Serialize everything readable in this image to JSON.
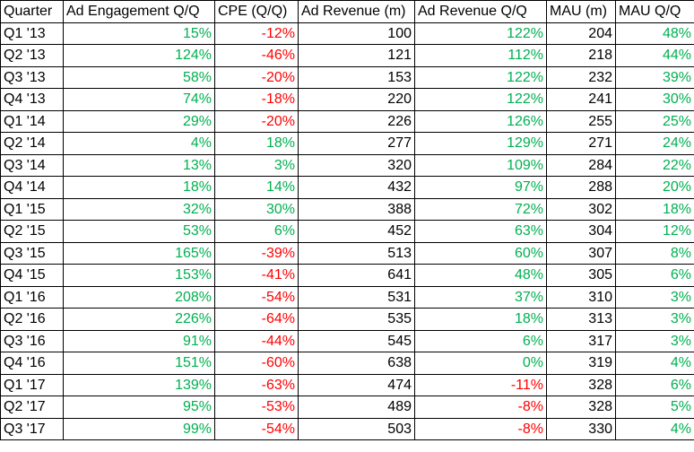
{
  "colors": {
    "positive": "#00b050",
    "negative": "#ff0000",
    "neutral": "#000000"
  },
  "chart_data": {
    "type": "table",
    "columns": [
      "Quarter",
      "Ad Engagement Q/Q",
      "CPE (Q/Q)",
      "Ad Revenue (m)",
      "Ad Revenue Q/Q",
      "MAU (m)",
      "MAU Q/Q"
    ],
    "rows": [
      [
        "Q1 '13",
        "15%",
        "-12%",
        "100",
        "122%",
        "204",
        "48%"
      ],
      [
        "Q2 '13",
        "124%",
        "-46%",
        "121",
        "112%",
        "218",
        "44%"
      ],
      [
        "Q3 '13",
        "58%",
        "-20%",
        "153",
        "122%",
        "232",
        "39%"
      ],
      [
        "Q4 '13",
        "74%",
        "-18%",
        "220",
        "122%",
        "241",
        "30%"
      ],
      [
        "Q1 '14",
        "29%",
        "-20%",
        "226",
        "126%",
        "255",
        "25%"
      ],
      [
        "Q2 '14",
        "4%",
        "18%",
        "277",
        "129%",
        "271",
        "24%"
      ],
      [
        "Q3 '14",
        "13%",
        "3%",
        "320",
        "109%",
        "284",
        "22%"
      ],
      [
        "Q4 '14",
        "18%",
        "14%",
        "432",
        "97%",
        "288",
        "20%"
      ],
      [
        "Q1 '15",
        "32%",
        "30%",
        "388",
        "72%",
        "302",
        "18%"
      ],
      [
        "Q2 '15",
        "53%",
        "6%",
        "452",
        "63%",
        "304",
        "12%"
      ],
      [
        "Q3 '15",
        "165%",
        "-39%",
        "513",
        "60%",
        "307",
        "8%"
      ],
      [
        "Q4 '15",
        "153%",
        "-41%",
        "641",
        "48%",
        "305",
        "6%"
      ],
      [
        "Q1 '16",
        "208%",
        "-54%",
        "531",
        "37%",
        "310",
        "3%"
      ],
      [
        "Q2 '16",
        "226%",
        "-64%",
        "535",
        "18%",
        "313",
        "3%"
      ],
      [
        "Q3 '16",
        "91%",
        "-44%",
        "545",
        "6%",
        "317",
        "3%"
      ],
      [
        "Q4 '16",
        "151%",
        "-60%",
        "638",
        "0%",
        "319",
        "4%"
      ],
      [
        "Q1 '17",
        "139%",
        "-63%",
        "474",
        "-11%",
        "328",
        "6%"
      ],
      [
        "Q2 '17",
        "95%",
        "-53%",
        "489",
        "-8%",
        "328",
        "5%"
      ],
      [
        "Q3 '17",
        "99%",
        "-54%",
        "503",
        "-8%",
        "330",
        "4%"
      ]
    ]
  }
}
